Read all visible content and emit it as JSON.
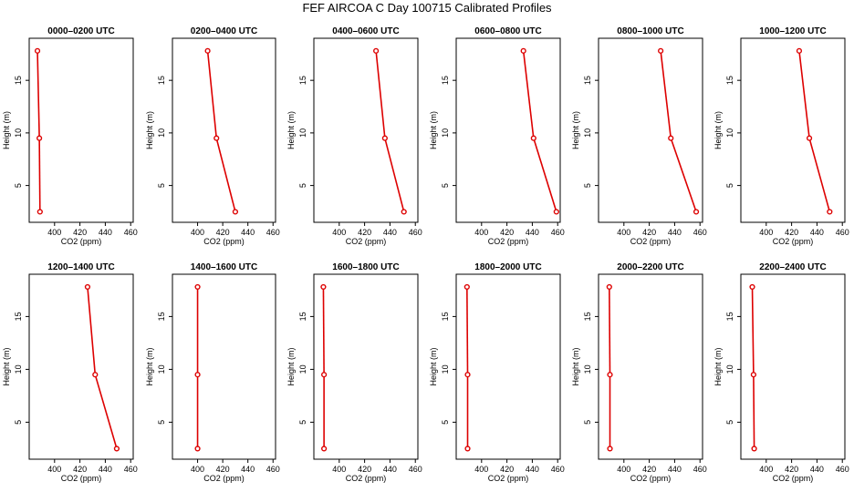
{
  "figure": {
    "title": "FEF AIRCOA C  Day 100715  Calibrated Profiles"
  },
  "chart_data": {
    "type": "line",
    "xlabel": "CO2 (ppm)",
    "ylabel": "Height (m)",
    "xlim": [
      380,
      462
    ],
    "ylim": [
      1.5,
      19
    ],
    "xticks": [
      400,
      420,
      440,
      460
    ],
    "yticks": [
      5,
      10,
      15
    ],
    "heights": [
      2.5,
      9.5,
      17.8
    ],
    "line_color": "#dd0000",
    "panels": [
      {
        "title": "0000–0200 UTC",
        "values": [
          388.5,
          388,
          386.5
        ]
      },
      {
        "title": "0200–0400 UTC",
        "values": [
          430,
          415,
          408
        ]
      },
      {
        "title": "0400–0600 UTC",
        "values": [
          451,
          436,
          429
        ]
      },
      {
        "title": "0600–0800 UTC",
        "values": [
          459,
          441,
          433
        ]
      },
      {
        "title": "0800–1000 UTC",
        "values": [
          457,
          437,
          429
        ]
      },
      {
        "title": "1000–1200 UTC",
        "values": [
          450,
          434,
          426
        ]
      },
      {
        "title": "1200–1400 UTC",
        "values": [
          449,
          432,
          426
        ]
      },
      {
        "title": "1400–1600 UTC",
        "values": [
          400,
          400,
          400
        ]
      },
      {
        "title": "1600–1800 UTC",
        "values": [
          388,
          388,
          387.5
        ]
      },
      {
        "title": "1800–2000 UTC",
        "values": [
          389,
          389,
          388.5
        ]
      },
      {
        "title": "2000–2200 UTC",
        "values": [
          389,
          389,
          388.5
        ]
      },
      {
        "title": "2200–2400 UTC",
        "values": [
          390.5,
          390,
          389
        ]
      }
    ]
  }
}
